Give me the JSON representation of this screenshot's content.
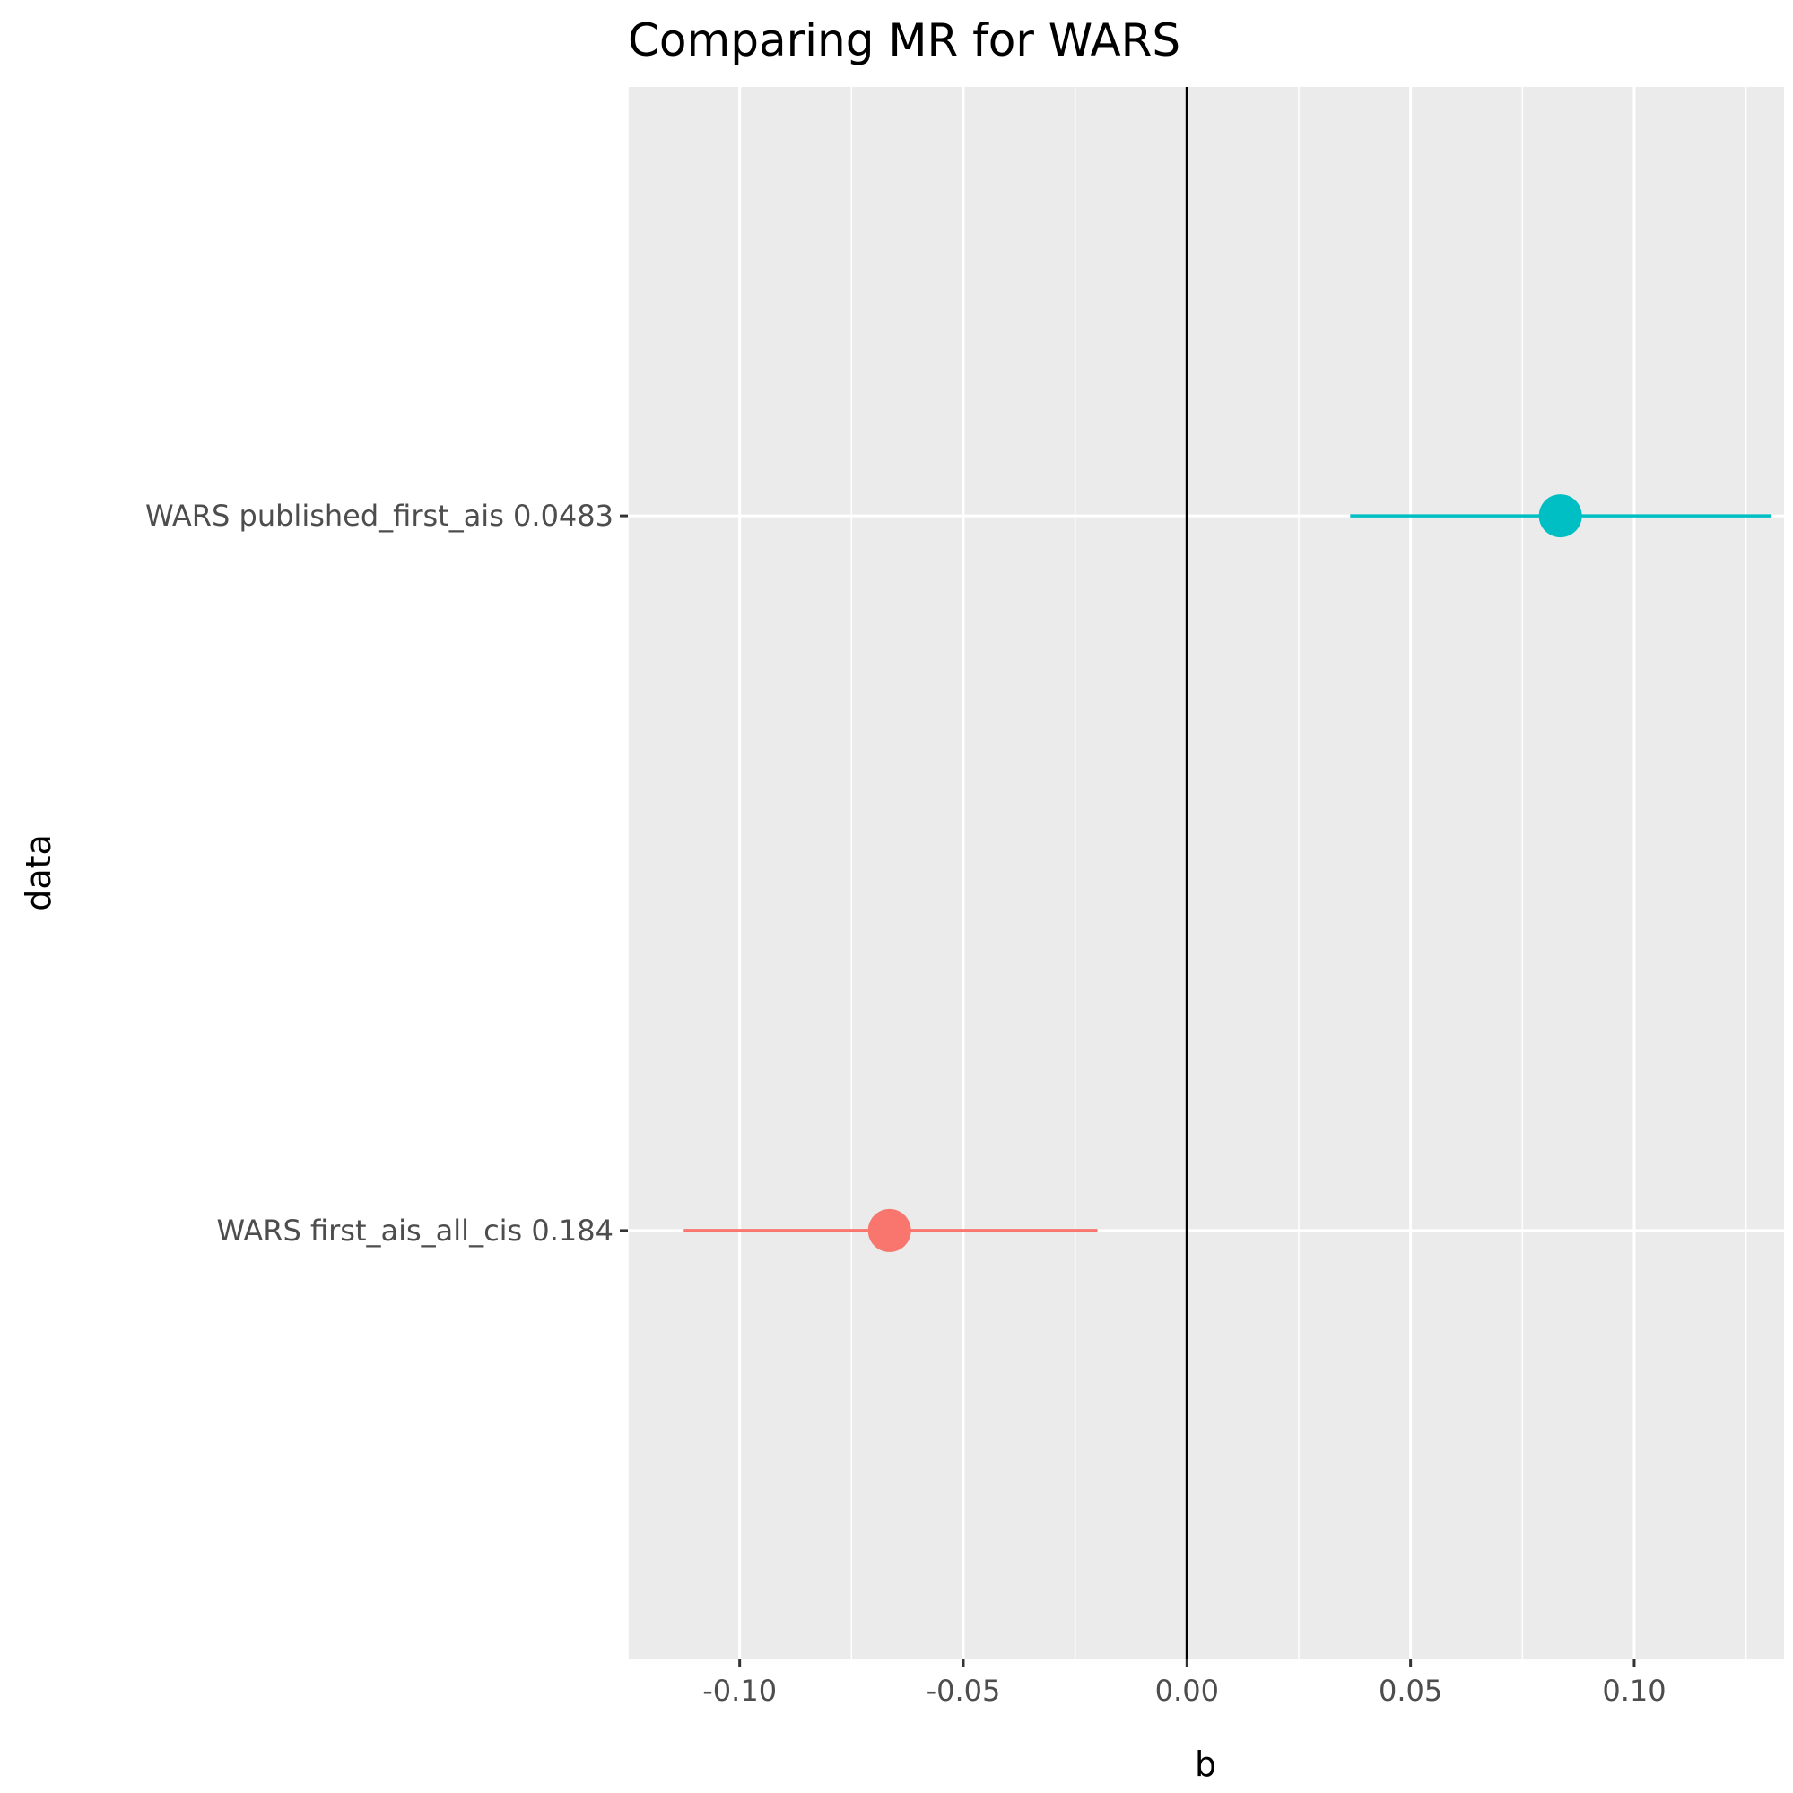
{
  "chart_data": {
    "type": "forest",
    "title": "Comparing MR for WARS",
    "xlabel": "b",
    "ylabel": "data",
    "xlim": [
      -0.125,
      0.1335
    ],
    "x_ticks": [
      -0.1,
      -0.05,
      0.0,
      0.05,
      0.1
    ],
    "x_tick_labels": [
      "-0.10",
      "-0.05",
      "0.00",
      "0.05",
      "0.10"
    ],
    "reference_line": 0.0,
    "grid": true,
    "background": "#ebebeb",
    "legend": "none",
    "rows": [
      {
        "label": "WARS first_ais_all_cis 0.184",
        "b": -0.0665,
        "lo": -0.1125,
        "hi": -0.02,
        "color": "#f8766d"
      },
      {
        "label": "WARS published_first_ais 0.0483",
        "b": 0.0835,
        "lo": 0.0365,
        "hi": 0.1305,
        "color": "#00bfc4"
      }
    ]
  }
}
